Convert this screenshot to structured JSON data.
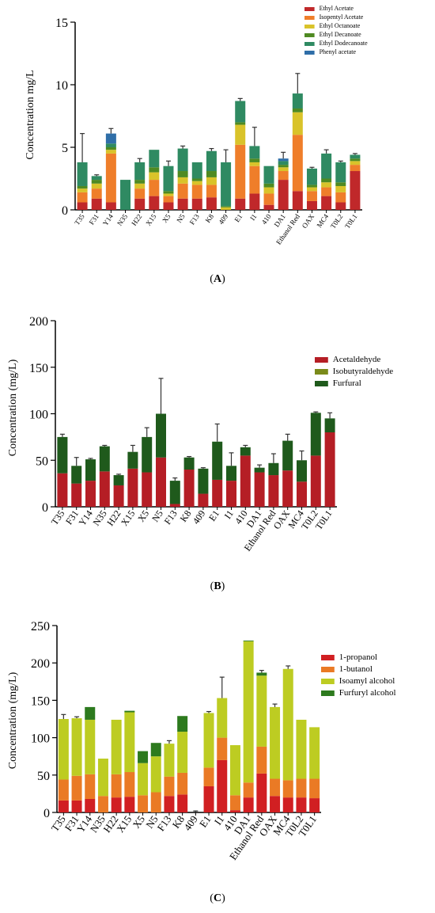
{
  "captions": [
    "A",
    "B",
    "C"
  ],
  "chart_data": [
    {
      "type": "bar",
      "stacked": true,
      "ylabel": "Concentration mg/L",
      "ylim": [
        0,
        15
      ],
      "yticks": [
        0,
        5,
        10,
        15
      ],
      "legend_position": "top-right",
      "categories": [
        "T35",
        "F31",
        "Y14",
        "N35",
        "H22",
        "X15",
        "X5",
        "N5",
        "F13",
        "K8",
        "409",
        "E1",
        "I1",
        "410",
        "DA1",
        "Ethanol Red",
        "OAX",
        "MC4",
        "T0L2",
        "T0L1"
      ],
      "series": [
        {
          "name": "Ethyl Acetate",
          "color": "#c0282a",
          "values": [
            0.6,
            0.9,
            0.6,
            0,
            0.9,
            1.1,
            0.6,
            0.9,
            0.9,
            1.0,
            0,
            0.9,
            1.3,
            0.4,
            2.4,
            1.5,
            0.7,
            1.1,
            0.6,
            3.1
          ]
        },
        {
          "name": "Isopentyl Acetate",
          "color": "#ef7e2a",
          "values": [
            0.8,
            0.8,
            3.9,
            0,
            0.8,
            1.3,
            0.5,
            1.2,
            1.1,
            1.0,
            0,
            4.3,
            2.2,
            0.9,
            0.7,
            4.5,
            0.8,
            0.7,
            0.8,
            0.5
          ]
        },
        {
          "name": "Ethyl Octanoate",
          "color": "#d9c32a",
          "values": [
            0.3,
            0.4,
            0.3,
            0,
            0.4,
            0.6,
            0.2,
            0.5,
            0.3,
            0.6,
            0.2,
            1.6,
            0.3,
            0.5,
            0.3,
            1.8,
            0.3,
            0.4,
            0.5,
            0.3
          ]
        },
        {
          "name": "Ethyl Decanoate",
          "color": "#4f8a22",
          "values": [
            0.2,
            0.3,
            0.2,
            0,
            0.3,
            0.4,
            0.2,
            0.5,
            0.2,
            0.5,
            0.1,
            0.2,
            0.3,
            0.3,
            0.2,
            0.3,
            0.2,
            0.3,
            0.3,
            0.2
          ]
        },
        {
          "name": "Ethyl Dodecanoate",
          "color": "#2f8a62",
          "values": [
            1.9,
            0.3,
            0.3,
            2.4,
            1.4,
            1.4,
            2.0,
            1.8,
            1.3,
            1.6,
            3.5,
            1.7,
            1.0,
            1.4,
            0.3,
            1.2,
            1.3,
            2.0,
            1.6,
            0.3
          ]
        },
        {
          "name": "Phenyl acetate",
          "color": "#2f6ea8",
          "values": [
            0,
            0,
            0.8,
            0,
            0,
            0,
            0,
            0,
            0,
            0,
            0,
            0,
            0,
            0,
            0.2,
            0,
            0,
            0,
            0,
            0
          ]
        }
      ],
      "errors": [
        2.3,
        0.1,
        0.4,
        0,
        0.3,
        0,
        0.4,
        0.2,
        0,
        0.2,
        1.0,
        0.2,
        1.5,
        0,
        0.5,
        1.6,
        0.1,
        0.3,
        0.1,
        0.1
      ]
    },
    {
      "type": "bar",
      "stacked": true,
      "ylabel": "Concentration (mg/L)",
      "ylim": [
        0,
        200
      ],
      "yticks": [
        0,
        50,
        100,
        150,
        200
      ],
      "legend_position": "right",
      "categories": [
        "T35",
        "F31",
        "Y14",
        "N35",
        "H22",
        "X15",
        "X5",
        "N5",
        "F13",
        "K8",
        "409",
        "E1",
        "I1",
        "410",
        "DA1",
        "Ethanol Red",
        "OAX",
        "MC4",
        "T0L2",
        "T0L1"
      ],
      "series": [
        {
          "name": "Acetaldehyde",
          "color": "#b51e25",
          "values": [
            36,
            25,
            28,
            38,
            23,
            41,
            37,
            53,
            3,
            40,
            14,
            29,
            28,
            55,
            37,
            34,
            39,
            27,
            55,
            80
          ]
        },
        {
          "name": "Isobutyraldehyde",
          "color": "#7a8a1a",
          "values": [
            0,
            0,
            0,
            0,
            0,
            0,
            0,
            0,
            0,
            0,
            0,
            0,
            0,
            0,
            0,
            0,
            0,
            0,
            0,
            0
          ]
        },
        {
          "name": "Furfural",
          "color": "#1f5a1c",
          "values": [
            39,
            19,
            23,
            27,
            11,
            18,
            38,
            47,
            25,
            13,
            27,
            41,
            16,
            9,
            5,
            13,
            32,
            23,
            46,
            15
          ]
        }
      ],
      "errors": [
        3,
        9,
        1,
        1,
        1,
        7,
        10,
        38,
        3,
        1,
        1,
        19,
        14,
        2,
        3,
        10,
        7,
        10,
        1,
        6
      ]
    },
    {
      "type": "bar",
      "stacked": true,
      "ylabel": "Concentration (mg/L)",
      "ylim": [
        0,
        250
      ],
      "yticks": [
        0,
        50,
        100,
        150,
        200,
        250
      ],
      "legend_position": "right",
      "categories": [
        "T35",
        "F31",
        "Y14",
        "N35",
        "H22",
        "X15",
        "X5",
        "N5",
        "F13",
        "K8",
        "409",
        "E1",
        "I1",
        "410",
        "DA1",
        "Ethanol Red",
        "OAX",
        "MC4",
        "T0L2",
        "T0L1"
      ],
      "series": [
        {
          "name": "1-propanol",
          "color": "#d11f22",
          "values": [
            16,
            16,
            18,
            0,
            20,
            21,
            0,
            0,
            22,
            24,
            0,
            35,
            70,
            3,
            20,
            52,
            22,
            20,
            20,
            19
          ]
        },
        {
          "name": "1-butanol",
          "color": "#ea7a25",
          "values": [
            28,
            33,
            33,
            22,
            31,
            33,
            23,
            27,
            26,
            29,
            0,
            25,
            30,
            20,
            20,
            36,
            23,
            23,
            25,
            26
          ]
        },
        {
          "name": "Isoamyl alcohol",
          "color": "#bdcc22",
          "values": [
            81,
            77,
            73,
            50,
            73,
            80,
            43,
            48,
            44,
            55,
            0,
            73,
            53,
            67,
            189,
            95,
            96,
            149,
            79,
            69
          ]
        },
        {
          "name": "Furfuryl alcohol",
          "color": "#2d7a1e",
          "values": [
            0,
            0,
            17,
            0,
            0,
            2,
            16,
            18,
            0,
            21,
            0,
            0,
            0,
            0,
            1,
            4,
            0,
            0,
            0,
            0
          ]
        }
      ],
      "errors": [
        6,
        2,
        0,
        0,
        0,
        0,
        0,
        0,
        4,
        0,
        2,
        2,
        28,
        0,
        0,
        3,
        4,
        4,
        0,
        0
      ]
    }
  ]
}
